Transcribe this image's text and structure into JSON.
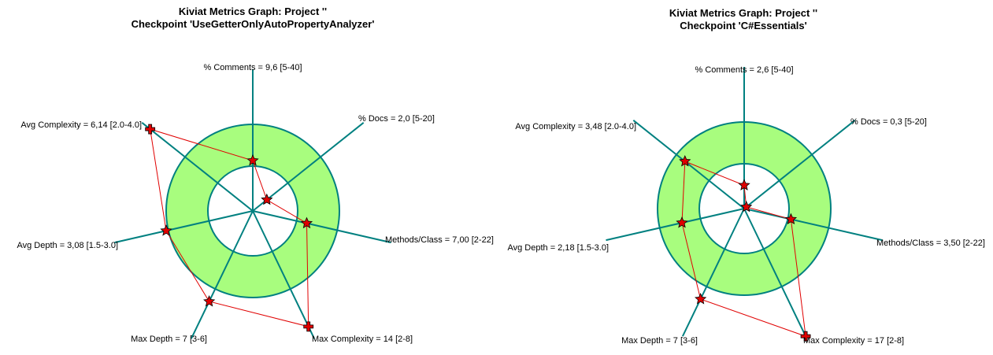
{
  "chart_data": [
    {
      "type": "radar",
      "title_line1": "Kiviat Metrics Graph: Project ''",
      "title_line2": "Checkpoint 'UseGetterOnlyAutoPropertyAnalyzer'",
      "target_color": "#a8fd7e",
      "axis_color": "#008080",
      "series_color": "#e00000",
      "axes": [
        {
          "name": "% Comments",
          "label": "% Comments = 9,6 [5-40]",
          "value": 9.6,
          "range": [
            5,
            40
          ]
        },
        {
          "name": "% Docs",
          "label": "% Docs = 2,0 [5-20]",
          "value": 2.0,
          "range": [
            5,
            20
          ]
        },
        {
          "name": "Methods/Class",
          "label": "Methods/Class = 7,00 [2-22]",
          "value": 7.0,
          "range": [
            2,
            22
          ]
        },
        {
          "name": "Max Complexity",
          "label": "Max Complexity = 14 [2-8]",
          "value": 14,
          "range": [
            2,
            8
          ],
          "out_of_range": true
        },
        {
          "name": "Max Depth",
          "label": "Max Depth = 7 [3-6]",
          "value": 7,
          "range": [
            3,
            6
          ]
        },
        {
          "name": "Avg Depth",
          "label": "Avg Depth = 3,08 [1.5-3.0]",
          "value": 3.08,
          "range": [
            1.5,
            3.0
          ]
        },
        {
          "name": "Avg Complexity",
          "label": "Avg Complexity = 6,14 [2.0-4.0]",
          "value": 6.14,
          "range": [
            2.0,
            4.0
          ],
          "out_of_range": true
        }
      ]
    },
    {
      "type": "radar",
      "title_line1": "Kiviat Metrics Graph: Project ''",
      "title_line2": "Checkpoint 'C#Essentials'",
      "target_color": "#a8fd7e",
      "axis_color": "#008080",
      "series_color": "#e00000",
      "axes": [
        {
          "name": "% Comments",
          "label": "% Comments = 2,6 [5-40]",
          "value": 2.6,
          "range": [
            5,
            40
          ]
        },
        {
          "name": "% Docs",
          "label": "% Docs = 0,3 [5-20]",
          "value": 0.3,
          "range": [
            5,
            20
          ]
        },
        {
          "name": "Methods/Class",
          "label": "Methods/Class = 3,50 [2-22]",
          "value": 3.5,
          "range": [
            2,
            22
          ]
        },
        {
          "name": "Max Complexity",
          "label": "Max Complexity = 17 [2-8]",
          "value": 17,
          "range": [
            2,
            8
          ],
          "out_of_range": true
        },
        {
          "name": "Max Depth",
          "label": "Max Depth = 7 [3-6]",
          "value": 7,
          "range": [
            3,
            6
          ]
        },
        {
          "name": "Avg Depth",
          "label": "Avg Depth = 2,18 [1.5-3.0]",
          "value": 2.18,
          "range": [
            1.5,
            3.0
          ]
        },
        {
          "name": "Avg Complexity",
          "label": "Avg Complexity = 3,48 [2.0-4.0]",
          "value": 3.48,
          "range": [
            2.0,
            4.0
          ]
        }
      ]
    }
  ]
}
